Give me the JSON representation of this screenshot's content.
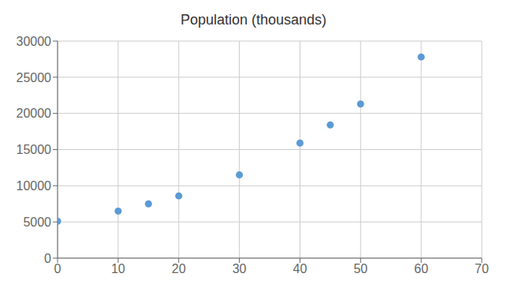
{
  "chart_data": {
    "type": "scatter",
    "title": "Population (thousands)",
    "x": [
      0,
      10,
      15,
      20,
      30,
      40,
      45,
      50,
      60
    ],
    "values": [
      5100,
      6500,
      7500,
      8600,
      11500,
      15900,
      18400,
      21300,
      27800
    ],
    "color": "#5b9bd5",
    "xlim": [
      0,
      70
    ],
    "ylim": [
      0,
      30000
    ],
    "xticks": [
      0,
      10,
      20,
      30,
      40,
      50,
      60,
      70
    ],
    "yticks": [
      0,
      5000,
      10000,
      15000,
      20000,
      25000,
      30000
    ],
    "grid": true
  }
}
